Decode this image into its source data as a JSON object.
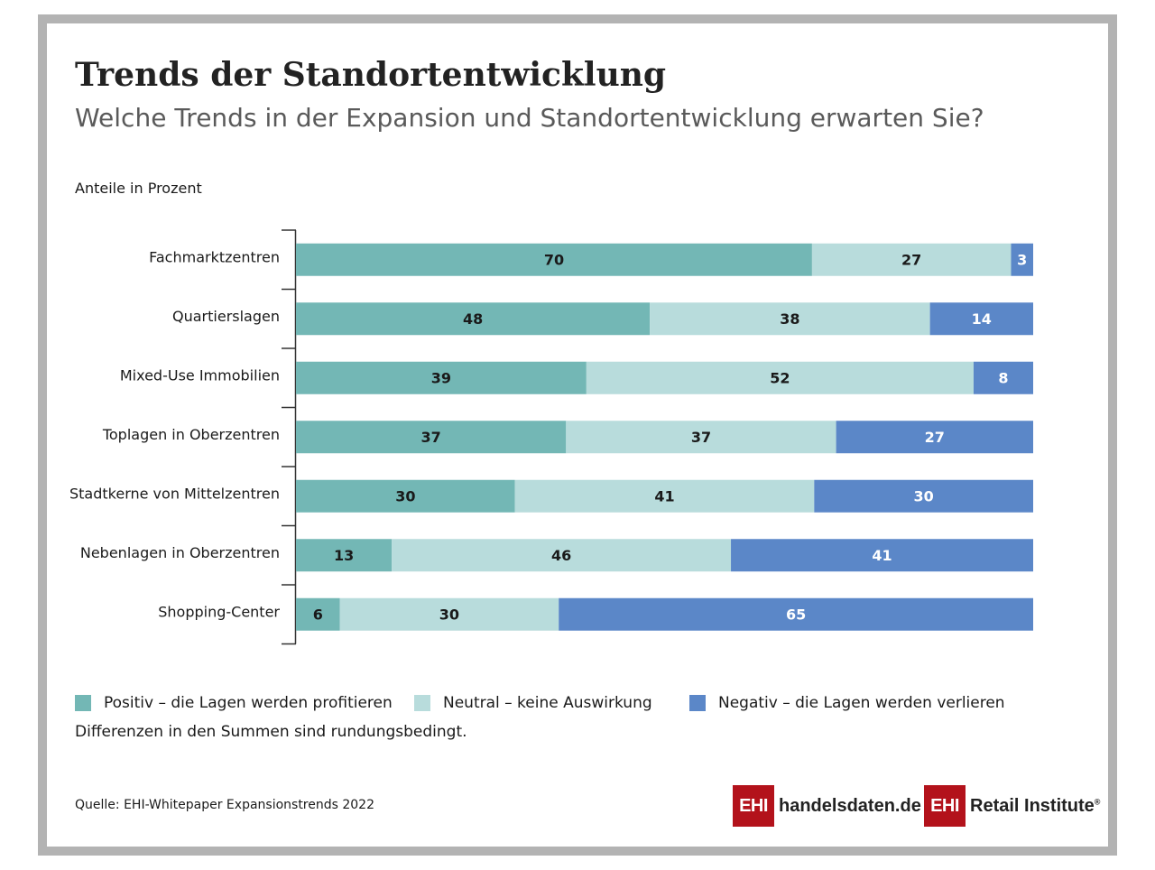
{
  "header": {
    "title": "Trends der Standortentwicklung",
    "subtitle": "Welche Trends in der Expansion und Standortentwicklung erwarten Sie?",
    "unit_label": "Anteile in Prozent"
  },
  "chart_data": {
    "type": "bar",
    "orientation": "horizontal",
    "stacked": true,
    "categories": [
      "Fachmarktzentren",
      "Quartierslagen",
      "Mixed-Use Immobilien",
      "Toplagen in Oberzentren",
      "Stadtkerne von Mittelzentren",
      "Nebenlagen in Oberzentren",
      "Shopping-Center"
    ],
    "series": [
      {
        "name": "Positiv – die Lagen werden profitieren",
        "color": "#73b7b5",
        "values": [
          70,
          48,
          39,
          37,
          30,
          13,
          6
        ]
      },
      {
        "name": "Neutral – keine Auswirkung",
        "color": "#b8dcdc",
        "values": [
          27,
          38,
          52,
          37,
          41,
          46,
          30
        ]
      },
      {
        "name": "Negativ – die Lagen werden verlieren",
        "color": "#5b87c8",
        "values": [
          3,
          14,
          8,
          27,
          30,
          41,
          65
        ]
      }
    ],
    "legend_position": "bottom",
    "grid": false,
    "data_labels": true
  },
  "footer": {
    "note": "Differenzen in den Summen sind rundungsbedingt.",
    "source": "Quelle: EHI-Whitepaper Expansionstrends 2022"
  },
  "logos": [
    {
      "mark": "EHI",
      "text": "handelsdaten.de",
      "color": "#b3121b"
    },
    {
      "mark": "EHI",
      "text": "Retail Institute",
      "suffix": "®",
      "color": "#b3121b"
    }
  ]
}
